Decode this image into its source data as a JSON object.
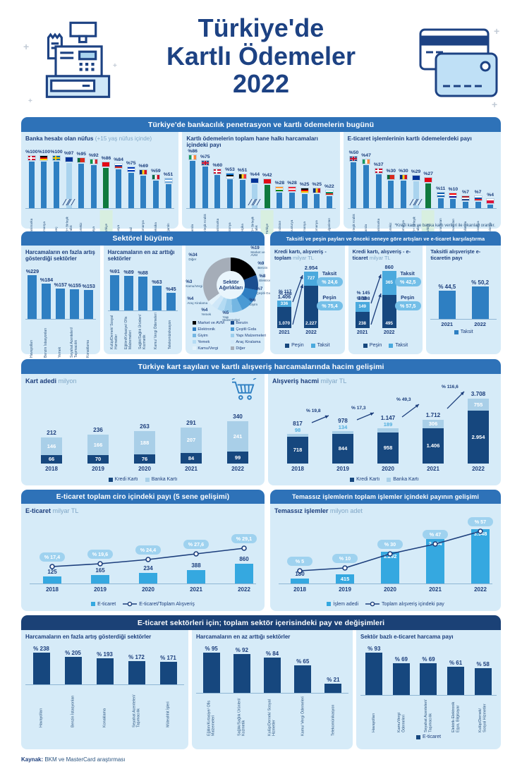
{
  "poster_title": {
    "line1": "Türkiye'de",
    "line2": "Kartlı Ödemeler",
    "line3": "2022"
  },
  "source": {
    "label": "Kaynak:",
    "text": " BKM ve MasterCard araştırması"
  },
  "colors": {
    "navy_text": "#1c3e7c",
    "band_blue": "#2e72b8",
    "band_navy": "#1b4176",
    "panel_blue": "#d6ebf8",
    "bar_blue": "#2e7fc2",
    "bar_light": "#a9d3ee",
    "bar_green": "#0f7a3e",
    "bar_navy": "#16477e",
    "bar_cyan": "#35a8e0",
    "stack_light": "#4aa9dd",
    "stack_pale": "#a9cfe8",
    "badge_blue": "#74bfe8",
    "line_navy": "#1c3e7c",
    "banka_label_out": "#4fadde"
  },
  "sections": {
    "s1": {
      "header": "Türkiye'de bankacılık penetrasyon ve kartlı ödemelerin bugünü",
      "footnote": "*Kredi kartı ve banka kartı verileri ile çıkarılan orandır."
    },
    "s2l": {
      "header": "Sektörel büyüme"
    },
    "s2r": {
      "header": "Taksitli ve peşin payları ve önceki seneye göre artışları ve e-ticaret karşılaştırma"
    },
    "s3": {
      "header": "Türkiye kart sayıları ve kartlı alışveriş harcamalarında hacim gelişimi"
    },
    "s4l": {
      "header": "E-ticaret toplam ciro içindeki payı (5 sene gelişimi)"
    },
    "s4r": {
      "header": "Temassız işlemlerin toplam işlemler içindeki payının gelişimi"
    },
    "s5": {
      "header": "E-ticaret sektörleri için; toplam sektör içerisindeki pay ve değişimleri"
    }
  },
  "chart_data": [
    {
      "id": "banka-hesabi",
      "type": "bar",
      "title_bold": "Banka hesabı olan nüfus",
      "title_light": " (+15 yaş nüfus içinde)",
      "categories": [
        "Danimarka",
        "Almanya",
        "İsveç",
        "AB+ Birleşik Krallık",
        "Portekiz",
        "İtalya",
        "Türkiye",
        "Rusya",
        "İsrail",
        "Romanya",
        "Meksika",
        "Arjantin"
      ],
      "values": [
        100,
        100,
        100,
        97,
        95,
        92,
        86,
        84,
        75,
        69,
        59,
        51
      ],
      "labels": [
        "%100",
        "%100",
        "%100",
        "%97",
        "%95",
        "%92",
        "%86",
        "%84",
        "%75",
        "%69",
        "%59",
        "%51"
      ],
      "styles": [
        "n",
        "n",
        "n",
        "eu",
        "n",
        "n",
        "tr",
        "n",
        "n",
        "n",
        "n",
        "n"
      ],
      "flags": [
        {
          "t": "cross",
          "c": [
            "#c8102e",
            "#ffffff"
          ]
        },
        {
          "t": "h",
          "c": [
            "#000000",
            "#dd0000",
            "#ffce00"
          ]
        },
        {
          "t": "cross",
          "c": [
            "#006aa7",
            "#fecc00"
          ]
        },
        {
          "t": "solid",
          "c": [
            "#003399"
          ]
        },
        {
          "t": "v",
          "c": [
            "#046a38",
            "#da291c",
            "#da291c"
          ]
        },
        {
          "t": "v",
          "c": [
            "#009246",
            "#ffffff",
            "#ce2b37"
          ]
        },
        {
          "t": "solid",
          "c": [
            "#e30a17"
          ]
        },
        {
          "t": "h",
          "c": [
            "#ffffff",
            "#0039a6",
            "#d52b1e"
          ]
        },
        {
          "t": "h",
          "c": [
            "#0038b8",
            "#ffffff",
            "#0038b8"
          ]
        },
        {
          "t": "v",
          "c": [
            "#002b7f",
            "#fcd116",
            "#ce1126"
          ]
        },
        {
          "t": "v",
          "c": [
            "#006847",
            "#ffffff",
            "#ce1126"
          ]
        },
        {
          "t": "h",
          "c": [
            "#74acdf",
            "#ffffff",
            "#74acdf"
          ]
        }
      ]
    },
    {
      "id": "hane-halki",
      "type": "bar",
      "title_bold": "Kartlı ödemelerin toplam hane halkı harcamaları içindeki payı",
      "title_light": "",
      "categories": [
        "İrlanda",
        "Birleşik Krallık",
        "Danimarka",
        "Estonya",
        "Belçika",
        "AB+ Birleşik Krallık",
        "Türkiye",
        "Hindistan",
        "Avusturya",
        "Almanya",
        "Romanya",
        "Bulgaristan"
      ],
      "values": [
        86,
        75,
        60,
        53,
        51,
        44,
        42,
        28,
        28,
        25,
        25,
        22
      ],
      "labels": [
        "%86",
        "%75",
        "%60",
        "%53",
        "%51",
        "%44",
        "%42",
        "%28",
        "%28",
        "%25",
        "%25",
        "%22"
      ],
      "styles": [
        "n",
        "n",
        "n",
        "n",
        "n",
        "eu",
        "tr",
        "n",
        "n",
        "n",
        "n",
        "n"
      ],
      "flags": [
        {
          "t": "v",
          "c": [
            "#169b62",
            "#ffffff",
            "#ff883e"
          ]
        },
        {
          "t": "uk",
          "c": [
            "#012169",
            "#ffffff",
            "#c8102e"
          ]
        },
        {
          "t": "cross",
          "c": [
            "#c8102e",
            "#ffffff"
          ]
        },
        {
          "t": "h",
          "c": [
            "#0072ce",
            "#000000",
            "#ffffff"
          ]
        },
        {
          "t": "v",
          "c": [
            "#000000",
            "#fdda24",
            "#ef3340"
          ]
        },
        {
          "t": "solid",
          "c": [
            "#003399"
          ]
        },
        {
          "t": "solid",
          "c": [
            "#e30a17"
          ]
        },
        {
          "t": "h",
          "c": [
            "#ff9933",
            "#ffffff",
            "#138808"
          ]
        },
        {
          "t": "h",
          "c": [
            "#ed2939",
            "#ffffff",
            "#ed2939"
          ]
        },
        {
          "t": "h",
          "c": [
            "#000000",
            "#dd0000",
            "#ffce00"
          ]
        },
        {
          "t": "v",
          "c": [
            "#002b7f",
            "#fcd116",
            "#ce1126"
          ]
        },
        {
          "t": "h",
          "c": [
            "#ffffff",
            "#00966e",
            "#d62612"
          ]
        }
      ]
    },
    {
      "id": "eticaret-pay",
      "type": "bar",
      "title_bold": "E-ticaret işlemlerinin kartlı ödemelerdeki payı",
      "title_light": "",
      "categories": [
        "Birleşik Krallık",
        "İrlanda",
        "Danimarka",
        "Portekiz",
        "Romanya",
        "AB+ Birleşik Krallık",
        "Türkiye",
        "Yunanistan",
        "Hırvatistan",
        "Hollanda",
        "Slovakya",
        "Polonya"
      ],
      "values": [
        50,
        47,
        37,
        30,
        30,
        29,
        27,
        11,
        10,
        7,
        7,
        4
      ],
      "labels": [
        "%50",
        "%47",
        "%37",
        "%30",
        "%30",
        "%29",
        "%27",
        "%11",
        "%10",
        "%7",
        "%7",
        "%4"
      ],
      "styles": [
        "n",
        "n",
        "n",
        "n",
        "n",
        "eu",
        "tr",
        "n",
        "n",
        "n",
        "n",
        "n"
      ],
      "flags": [
        {
          "t": "uk",
          "c": [
            "#012169",
            "#ffffff",
            "#c8102e"
          ]
        },
        {
          "t": "v",
          "c": [
            "#169b62",
            "#ffffff",
            "#ff883e"
          ]
        },
        {
          "t": "cross",
          "c": [
            "#c8102e",
            "#ffffff"
          ]
        },
        {
          "t": "v",
          "c": [
            "#046a38",
            "#da291c",
            "#da291c"
          ]
        },
        {
          "t": "v",
          "c": [
            "#002b7f",
            "#fcd116",
            "#ce1126"
          ]
        },
        {
          "t": "solid",
          "c": [
            "#003399"
          ]
        },
        {
          "t": "solid",
          "c": [
            "#e30a17"
          ]
        },
        {
          "t": "h",
          "c": [
            "#0d5eaf",
            "#ffffff",
            "#0d5eaf"
          ]
        },
        {
          "t": "h",
          "c": [
            "#ff0000",
            "#ffffff",
            "#171796"
          ]
        },
        {
          "t": "h",
          "c": [
            "#ae1c28",
            "#ffffff",
            "#21468b"
          ]
        },
        {
          "t": "h",
          "c": [
            "#ffffff",
            "#0b4ea2",
            "#ee1c25"
          ]
        },
        {
          "t": "h",
          "c": [
            "#ffffff",
            "#dc143c",
            "#dc143c"
          ]
        }
      ]
    },
    {
      "id": "artis-fazla",
      "type": "bar",
      "title": "Harcamaların en fazla artış gösterdiği sektörler",
      "categories": [
        "Havayolları",
        "Benzin İstasyonları",
        "Yemek",
        "Seyahat Acenteleri/ Taşımacılık",
        "Konaklama"
      ],
      "values": [
        229,
        184,
        157,
        155,
        153
      ],
      "labels": [
        "%229",
        "%184",
        "%157",
        "%155",
        "%153"
      ]
    },
    {
      "id": "artis-az",
      "type": "bar",
      "title": "Harcamaların en az arttığı sektörler",
      "categories": [
        "Kulüp/Dernek/ Sosyal Hizmetler",
        "Eğitim/Kırtasiye/ Ofis Malzemeleri",
        "Sağlık/Sağlık Ürünleri/ Kozmetik",
        "Kamu/ Vergi Ödemeleri",
        "Telekomünikasyon"
      ],
      "values": [
        91,
        89,
        88,
        63,
        45
      ],
      "labels": [
        "%91",
        "%89",
        "%88",
        "%63",
        "%45"
      ]
    },
    {
      "id": "sektor-agirliklari",
      "type": "pie",
      "title": "Sektör Ağırlıkları",
      "segments": [
        {
          "name": "Market ve AVM",
          "value": 19,
          "label": "%19",
          "color": "#000000"
        },
        {
          "name": "Benzin",
          "value": 9,
          "label": "%9",
          "color": "#1b4e8f"
        },
        {
          "name": "Elektronik",
          "value": 8,
          "label": "%8",
          "color": "#2f7ec2"
        },
        {
          "name": "Çeşitli Gıda",
          "value": 7,
          "label": "%7",
          "color": "#4a9ad4"
        },
        {
          "name": "Giyim",
          "value": 6,
          "label": "%6",
          "color": "#74b6e2"
        },
        {
          "name": "Yapı Malzemeleri",
          "value": 5,
          "label": "%5",
          "color": "#9bcdec"
        },
        {
          "name": "Yemek",
          "value": 4,
          "label": "%4",
          "color": "#b4dbf3"
        },
        {
          "name": "Araç Kiralama",
          "value": 4,
          "label": "%4",
          "color": "#cfe7f8"
        },
        {
          "name": "Kamu/Vergi",
          "value": 3,
          "label": "%3",
          "color": "#e3f2fb"
        },
        {
          "name": "Diğer",
          "value": 34,
          "label": "%34",
          "color": "#a5adb8"
        }
      ],
      "legend_col1": [
        "Market ve AVM",
        "Elektronik",
        "Giyim",
        "Yemek",
        "Kamu/Vergi"
      ],
      "legend_col2": [
        "Benzin",
        "Çeşitli Gıda",
        "Yapı Malzemeleri",
        "Araç Kiralama",
        "Diğer"
      ]
    },
    {
      "id": "kk-toplam",
      "type": "stacked_bar",
      "title_bold": "Kredi kartı, alışveriş - toplam",
      "title_light": " milyar TL",
      "years": [
        "2021",
        "2022"
      ],
      "series": [
        {
          "name": "Peşin",
          "values": [
            1070,
            2227
          ],
          "display": [
            "1.070",
            "2.227"
          ]
        },
        {
          "name": "Taksit",
          "values": [
            336,
            727
          ],
          "display": [
            "336",
            "727"
          ]
        }
      ],
      "totals_display": [
        "1.406",
        "2.954"
      ],
      "growth": [
        {
          "name": "Taksit",
          "label": "% 117"
        },
        {
          "name": "Peşin",
          "label": "% 108"
        }
      ],
      "share_badges": [
        {
          "name": "Taksit",
          "label": "% 24,6"
        },
        {
          "name": "Peşin",
          "label": "% 75,4"
        }
      ],
      "legend": [
        "Peşin",
        "Taksit"
      ]
    },
    {
      "id": "kk-eticaret",
      "type": "stacked_bar",
      "title_bold": "Kredi kartı, alışveriş - e-ticaret",
      "title_light": " milyar TL",
      "years": [
        "2021",
        "2022"
      ],
      "series": [
        {
          "name": "Peşin",
          "values": [
            238,
            495
          ],
          "display": [
            "238",
            "495"
          ]
        },
        {
          "name": "Taksit",
          "values": [
            149,
            365
          ],
          "display": [
            "149",
            "365"
          ]
        }
      ],
      "totals_display": [
        "388",
        "860"
      ],
      "growth": [
        {
          "name": "Taksit",
          "label": "% 145"
        },
        {
          "name": "Peşin",
          "label": "% 108"
        }
      ],
      "share_badges": [
        {
          "name": "Taksit",
          "label": "% 42,5"
        },
        {
          "name": "Peşin",
          "label": "% 57,5"
        }
      ],
      "legend": [
        "Peşin",
        "Taksit"
      ]
    },
    {
      "id": "taksit-eticaret",
      "type": "bar",
      "title": "Taksitli alışverişte e-ticaretin payı",
      "categories": [
        "2021",
        "2022"
      ],
      "values": [
        44.5,
        50.2
      ],
      "labels": [
        "% 44,5",
        "% 50,2"
      ],
      "legend": [
        "Taksit"
      ]
    },
    {
      "id": "kart-adedi",
      "type": "stacked_bar",
      "title_bold": "Kart adedi",
      "title_light": " milyon",
      "years": [
        "2018",
        "2019",
        "2020",
        "2021",
        "2022"
      ],
      "series": [
        {
          "name": "Kredi Kartı",
          "values": [
            66,
            70,
            76,
            84,
            99
          ],
          "display": [
            "66",
            "70",
            "76",
            "84",
            "99"
          ]
        },
        {
          "name": "Banka Kartı",
          "values": [
            146,
            166,
            188,
            207,
            241
          ],
          "display": [
            "146",
            "166",
            "188",
            "207",
            "241"
          ]
        }
      ],
      "totals_display": [
        "212",
        "236",
        "263",
        "291",
        "340"
      ],
      "legend": [
        "Kredi Kartı",
        "Banka Kartı"
      ]
    },
    {
      "id": "alisveris-hacmi",
      "type": "stacked_bar",
      "title_bold": "Alışveriş hacmi",
      "title_light": " milyar TL",
      "years": [
        "2018",
        "2019",
        "2020",
        "2021",
        "2022"
      ],
      "series": [
        {
          "name": "Kredi Kartı",
          "values": [
            718,
            844,
            958,
            1406,
            2954
          ],
          "display": [
            "718",
            "844",
            "958",
            "1.406",
            "2.954"
          ]
        },
        {
          "name": "Banka Kartı",
          "values": [
            98,
            134,
            189,
            306,
            755
          ],
          "display": [
            "98",
            "134",
            "189",
            "306",
            "755"
          ]
        }
      ],
      "totals_display": [
        "817",
        "978",
        "1.147",
        "1.712",
        "3.708"
      ],
      "growth_labels": [
        "% 19,8",
        "% 17,3",
        "% 49,3",
        "% 116,6"
      ],
      "legend": [
        "Kredi Kartı",
        "Banka Kartı"
      ]
    },
    {
      "id": "eticaret-ciro",
      "type": "bar_line",
      "title_bold": "E-ticaret",
      "title_light": " milyar TL",
      "years": [
        "2018",
        "2019",
        "2020",
        "2021",
        "2022"
      ],
      "bar_values": [
        125,
        165,
        234,
        388,
        860
      ],
      "bar_display": [
        "125",
        "165",
        "234",
        "388",
        "860"
      ],
      "line_values": [
        17.4,
        19.6,
        24.4,
        27.6,
        29.1
      ],
      "line_badges": [
        "% 17,4",
        "% 19,6",
        "% 24,4",
        "% 27,6",
        "% 29,1"
      ],
      "legend_bar": "E-ticaret",
      "legend_line": "E-ticaret/Toplam Alışveriş"
    },
    {
      "id": "temassiz",
      "type": "bar_line",
      "title_bold": "Temassız işlemler",
      "title_light": " milyon adet",
      "years": [
        "2018",
        "2019",
        "2020",
        "2021",
        "2022"
      ],
      "bar_values": [
        180,
        415,
        1292,
        2494,
        3948
      ],
      "bar_display": [
        "180",
        "415",
        "1.292",
        "2.494",
        "3.948"
      ],
      "line_values": [
        5,
        10,
        30,
        47,
        57
      ],
      "line_badges": [
        "% 5",
        "% 10",
        "% 30",
        "% 47",
        "% 57"
      ],
      "legend_bar": "İşlem adedi",
      "legend_line": "Toplam alışveriş içindeki pay"
    },
    {
      "id": "e5-fazla",
      "type": "bar",
      "title": "Harcamaların en fazla artış gösterdiği sektörler",
      "categories": [
        "Havayolları",
        "Benzin İstasyonları",
        "Konaklama",
        "Seyahat Acenteleri/ Taşımacılık",
        "Müteahhit İşleri"
      ],
      "values": [
        238,
        205,
        193,
        172,
        171
      ],
      "labels": [
        "% 238",
        "% 205",
        "% 193",
        "% 172",
        "% 171"
      ]
    },
    {
      "id": "e5-az",
      "type": "bar",
      "title": "Harcamaların en az arttığı sektörler",
      "categories": [
        "Eğitim/Kırtasiye/ Ofis Malzemeleri",
        "Sağlık/Sağlık Ürünleri/ Kozmetik",
        "Kulüp/Dernek/ Sosyal Hizmetler",
        "Kamu/ Vergi Ödemeleri",
        "Telekomünikasyon"
      ],
      "values": [
        95,
        92,
        84,
        65,
        21
      ],
      "labels": [
        "% 95",
        "% 92",
        "% 84",
        "% 65",
        "% 21"
      ]
    },
    {
      "id": "e5-pay",
      "type": "bar",
      "title": "Sektör bazlı e-ticaret harcama payı",
      "categories": [
        "Havayolları",
        "Kamu/Vergi Ödemeleri",
        "Seyahat Acenteleri/ Taşımacılık",
        "Elektrik-Elektronik Eşya, Bilgisayar",
        "Kulüp/Dernek/ Sosyal Hizmetler"
      ],
      "values": [
        93,
        69,
        69,
        61,
        58
      ],
      "labels": [
        "% 93",
        "% 69",
        "% 69",
        "% 61",
        "% 58"
      ],
      "legend": [
        "E-ticaret"
      ]
    }
  ]
}
